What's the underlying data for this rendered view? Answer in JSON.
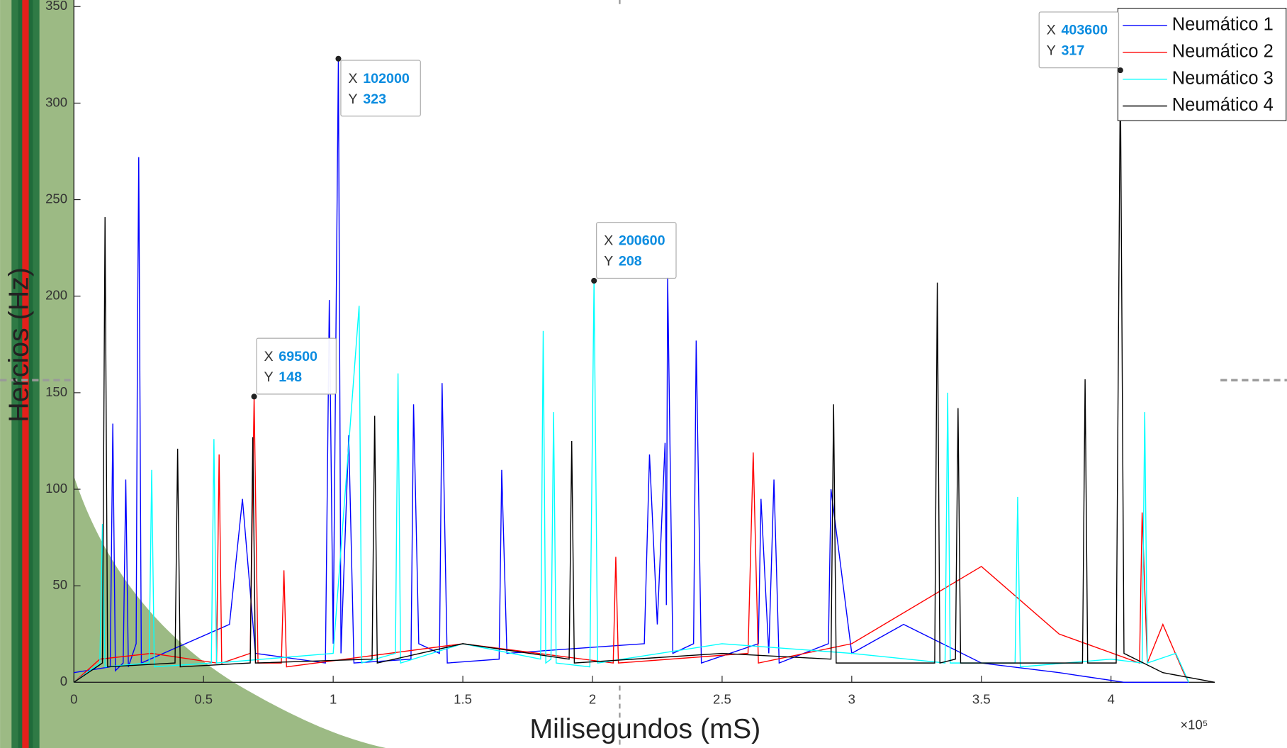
{
  "chart_data": {
    "type": "line",
    "x_label": "Milisegundos (mS)",
    "y_label": "Hercios (Hz)",
    "x_exponent_label": "×10⁵",
    "xlim": [
      0,
      440000
    ],
    "ylim": [
      0,
      350
    ],
    "xticks": [
      0,
      {
        "value": 50000,
        "label": "0.5"
      },
      {
        "value": 100000,
        "label": "1"
      },
      {
        "value": 150000,
        "label": "1.5"
      },
      {
        "value": 200000,
        "label": "2"
      },
      {
        "value": 250000,
        "label": "2.5"
      },
      {
        "value": 300000,
        "label": "3"
      },
      {
        "value": 350000,
        "label": "3.5"
      },
      {
        "value": 400000,
        "label": "4"
      }
    ],
    "yticks": [
      0,
      50,
      100,
      150,
      200,
      250,
      300,
      350
    ],
    "legend_position": "top-right",
    "series": [
      {
        "name": "Neumático 1",
        "color": "#0000ff",
        "x": [
          0,
          14000,
          15000,
          16000,
          19000,
          20000,
          21000,
          24000,
          24500,
          25000,
          26000,
          60000,
          65000,
          70000,
          97000,
          98500,
          100000,
          102000,
          103000,
          106000,
          108000,
          130000,
          131000,
          133000,
          141000,
          142000,
          144000,
          164000,
          165000,
          167000,
          220000,
          222000,
          225000,
          228000,
          228500,
          229000,
          231000,
          239000,
          240000,
          242000,
          264000,
          265000,
          268000,
          270000,
          272000,
          291000,
          292000,
          300000,
          320000,
          350000,
          380000,
          405000,
          430000
        ],
        "values": [
          5,
          8,
          134,
          6,
          10,
          105,
          8,
          20,
          175,
          272,
          10,
          30,
          95,
          15,
          10,
          198,
          20,
          323,
          15,
          128,
          10,
          12,
          144,
          20,
          15,
          155,
          10,
          12,
          110,
          15,
          20,
          118,
          30,
          124,
          40,
          210,
          15,
          20,
          177,
          10,
          20,
          95,
          15,
          105,
          10,
          20,
          100,
          15,
          30,
          10,
          5,
          0,
          0
        ]
      },
      {
        "name": "Neumático 2",
        "color": "#ff0000",
        "x": [
          0,
          10000,
          30000,
          55000,
          56000,
          57000,
          68000,
          69500,
          71000,
          80000,
          81000,
          82000,
          150000,
          208000,
          209000,
          210000,
          260000,
          262000,
          264000,
          300000,
          350000,
          380000,
          411000,
          412000,
          414000,
          420000,
          428000,
          430000
        ],
        "values": [
          0,
          12,
          15,
          10,
          118,
          10,
          15,
          148,
          10,
          10,
          58,
          8,
          20,
          10,
          65,
          10,
          15,
          119,
          10,
          20,
          60,
          25,
          10,
          88,
          10,
          30,
          5,
          0
        ]
      },
      {
        "name": "Neumático 3",
        "color": "#00ffff",
        "x": [
          0,
          10000,
          11000,
          12000,
          29000,
          30000,
          31000,
          53000,
          54000,
          55000,
          100000,
          110000,
          111000,
          124000,
          125000,
          126000,
          150000,
          180000,
          181000,
          182000,
          184000,
          185000,
          186000,
          199000,
          200600,
          202000,
          250000,
          300000,
          336000,
          337000,
          338000,
          363000,
          364000,
          365000,
          400000,
          412000,
          413000,
          414000,
          425000,
          430000
        ],
        "values": [
          0,
          10,
          82,
          8,
          10,
          110,
          8,
          10,
          126,
          10,
          15,
          195,
          10,
          15,
          160,
          10,
          20,
          12,
          182,
          10,
          12,
          140,
          10,
          8,
          208,
          10,
          20,
          15,
          10,
          150,
          10,
          10,
          96,
          8,
          12,
          10,
          140,
          10,
          15,
          0
        ]
      },
      {
        "name": "Neumático 4",
        "color": "#000000",
        "x": [
          0,
          11000,
          12000,
          13000,
          39000,
          40000,
          41000,
          68000,
          69000,
          70000,
          115000,
          116000,
          117000,
          150000,
          191000,
          192000,
          193000,
          250000,
          292000,
          293000,
          294000,
          332000,
          333000,
          334000,
          340000,
          341000,
          342000,
          389000,
          390000,
          391000,
          402000,
          403600,
          405000,
          420000,
          440000
        ],
        "values": [
          0,
          10,
          241,
          8,
          10,
          121,
          8,
          10,
          127,
          10,
          12,
          138,
          10,
          20,
          12,
          125,
          10,
          15,
          12,
          144,
          10,
          10,
          207,
          10,
          12,
          142,
          10,
          10,
          157,
          10,
          10,
          317,
          15,
          5,
          0
        ]
      }
    ],
    "datatip_x_label": "X",
    "datatip_y_label": "Y",
    "datatips": [
      {
        "x": 69500,
        "y": 148
      },
      {
        "x": 102000,
        "y": 323
      },
      {
        "x": 200600,
        "y": 208
      },
      {
        "x": 403600,
        "y": 317
      }
    ]
  }
}
